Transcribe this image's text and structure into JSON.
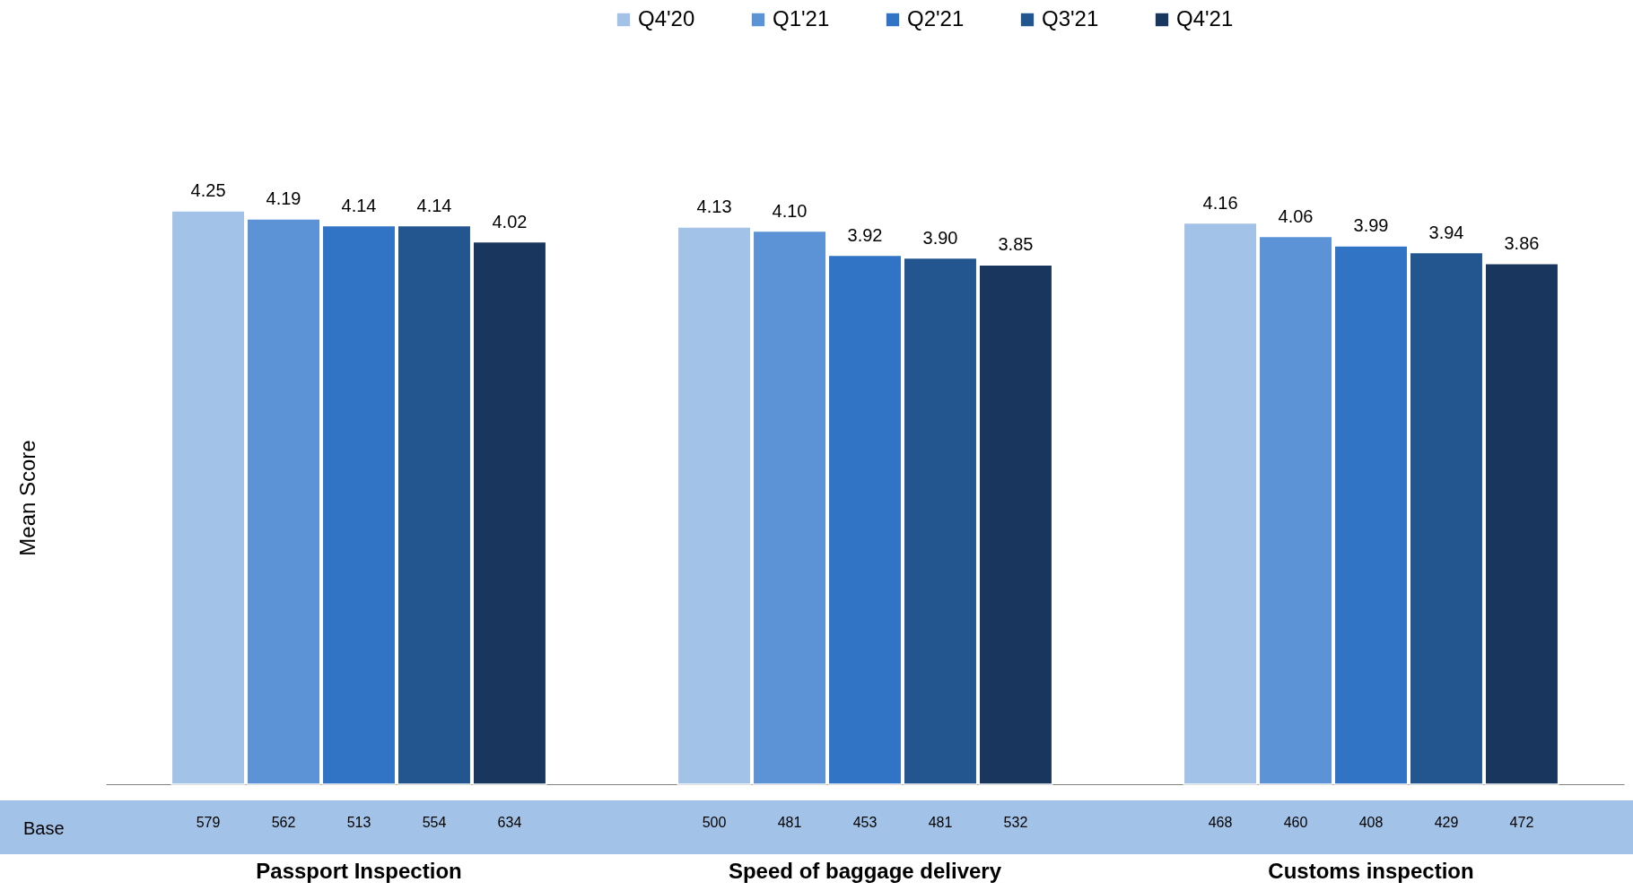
{
  "chart_data": {
    "type": "bar",
    "ylabel": "Mean Score",
    "categories": [
      "Passport Inspection",
      "Speed of baggage delivery",
      "Customs inspection"
    ],
    "series": [
      {
        "name": "Q4'20",
        "color": "#a3c2e7",
        "values": [
          4.25,
          4.13,
          4.16
        ],
        "value_labels": [
          "4.25",
          "4.13",
          "4.16"
        ]
      },
      {
        "name": "Q1'21",
        "color": "#5b93d6",
        "values": [
          4.19,
          4.1,
          4.06
        ],
        "value_labels": [
          "4.19",
          "4.10",
          "4.06"
        ]
      },
      {
        "name": "Q2'21",
        "color": "#3174c6",
        "values": [
          4.14,
          3.92,
          3.99
        ],
        "value_labels": [
          "4.14",
          "3.92",
          "3.99"
        ]
      },
      {
        "name": "Q3'21",
        "color": "#23568f",
        "values": [
          4.14,
          3.9,
          3.94
        ],
        "value_labels": [
          "4.14",
          "3.90",
          "3.94"
        ]
      },
      {
        "name": "Q4'21",
        "color": "#19375e",
        "values": [
          4.02,
          3.85,
          3.86
        ],
        "value_labels": [
          "4.02",
          "3.85",
          "3.86"
        ]
      }
    ],
    "legend": "top",
    "annotations": [
      "Base",
      "579",
      "562",
      "513",
      "554",
      "634",
      "500",
      "481",
      "453",
      "481",
      "532",
      "468",
      "460",
      "408",
      "429",
      "472"
    ]
  }
}
